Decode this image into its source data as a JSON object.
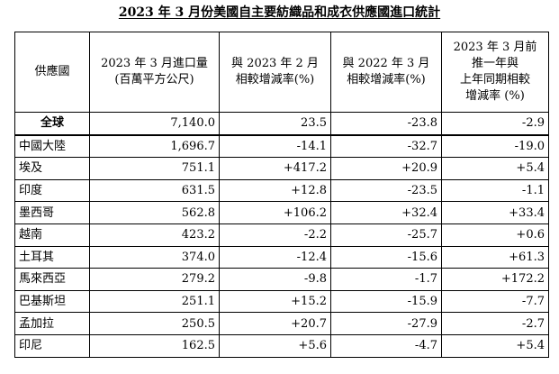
{
  "title": "2023 年 3 月份美國自主要紡織品和成衣供應國進口統計",
  "table": {
    "headers": [
      {
        "lines": [
          "供應國"
        ]
      },
      {
        "lines": [
          "2023 年 3 月進口量",
          "(百萬平方公尺)"
        ]
      },
      {
        "lines": [
          "與 2023 年 2 月",
          "相較增減率(%)"
        ]
      },
      {
        "lines": [
          "與 2022 年 3 月",
          "相較增減率(%)"
        ]
      },
      {
        "lines": [
          "2023 年 3 月前",
          "推一年與",
          "上年同期相較",
          "增減率 (%)"
        ]
      }
    ],
    "rows": [
      {
        "country": "全球",
        "volume": "7,140.0",
        "mom": "23.5",
        "yoy": "-23.8",
        "trailing": "-2.9"
      },
      {
        "country": "中國大陸",
        "volume": "1,696.7",
        "mom": "-14.1",
        "yoy": "-32.7",
        "trailing": "-19.0"
      },
      {
        "country": "埃及",
        "volume": "751.1",
        "mom": "+417.2",
        "yoy": "+20.9",
        "trailing": "+5.4"
      },
      {
        "country": "印度",
        "volume": "631.5",
        "mom": "+12.8",
        "yoy": "-23.5",
        "trailing": "-1.1"
      },
      {
        "country": "墨西哥",
        "volume": "562.8",
        "mom": "+106.2",
        "yoy": "+32.4",
        "trailing": "+33.4"
      },
      {
        "country": "越南",
        "volume": "423.2",
        "mom": "-2.2",
        "yoy": "-25.7",
        "trailing": "+0.6"
      },
      {
        "country": "土耳其",
        "volume": "374.0",
        "mom": "-12.4",
        "yoy": "-15.6",
        "trailing": "+61.3"
      },
      {
        "country": "馬來西亞",
        "volume": "279.2",
        "mom": "-9.8",
        "yoy": "-1.7",
        "trailing": "+172.2"
      },
      {
        "country": "巴基斯坦",
        "volume": "251.1",
        "mom": "+15.2",
        "yoy": "-15.9",
        "trailing": "-7.7"
      },
      {
        "country": "孟加拉",
        "volume": "250.5",
        "mom": "+20.7",
        "yoy": "-27.9",
        "trailing": "-2.7"
      },
      {
        "country": "印尼",
        "volume": "162.5",
        "mom": "+5.6",
        "yoy": "-4.7",
        "trailing": "+5.4"
      }
    ]
  }
}
